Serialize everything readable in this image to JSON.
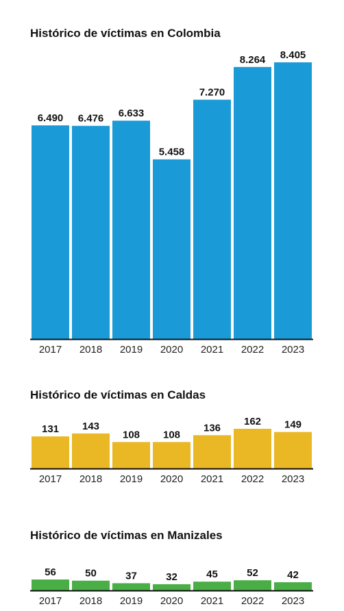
{
  "chart_data": [
    {
      "type": "bar",
      "title": "Histórico de víctimas en Colombia",
      "categories": [
        "2017",
        "2018",
        "2019",
        "2020",
        "2021",
        "2022",
        "2023"
      ],
      "values": [
        6490,
        6476,
        6633,
        5458,
        7270,
        8264,
        8405
      ],
      "value_labels": [
        "6.490",
        "6.476",
        "6.633",
        "5.458",
        "7.270",
        "8.264",
        "8.405"
      ],
      "color": "#1b9ad8",
      "ylim": [
        0,
        8405
      ],
      "grid": false,
      "legend": "none"
    },
    {
      "type": "bar",
      "title": "Histórico de víctimas en Caldas",
      "categories": [
        "2017",
        "2018",
        "2019",
        "2020",
        "2021",
        "2022",
        "2023"
      ],
      "values": [
        131,
        143,
        108,
        108,
        136,
        162,
        149
      ],
      "value_labels": [
        "131",
        "143",
        "108",
        "108",
        "136",
        "162",
        "149"
      ],
      "color": "#e9b824",
      "ylim": [
        0,
        162
      ],
      "grid": false,
      "legend": "none"
    },
    {
      "type": "bar",
      "title": "Histórico de víctimas en Manizales",
      "categories": [
        "2017",
        "2018",
        "2019",
        "2020",
        "2021",
        "2022",
        "2023"
      ],
      "values": [
        56,
        50,
        37,
        32,
        45,
        52,
        42
      ],
      "value_labels": [
        "56",
        "50",
        "37",
        "32",
        "45",
        "52",
        "42"
      ],
      "color": "#4aae46",
      "ylim": [
        0,
        56
      ],
      "grid": false,
      "legend": "none"
    }
  ]
}
